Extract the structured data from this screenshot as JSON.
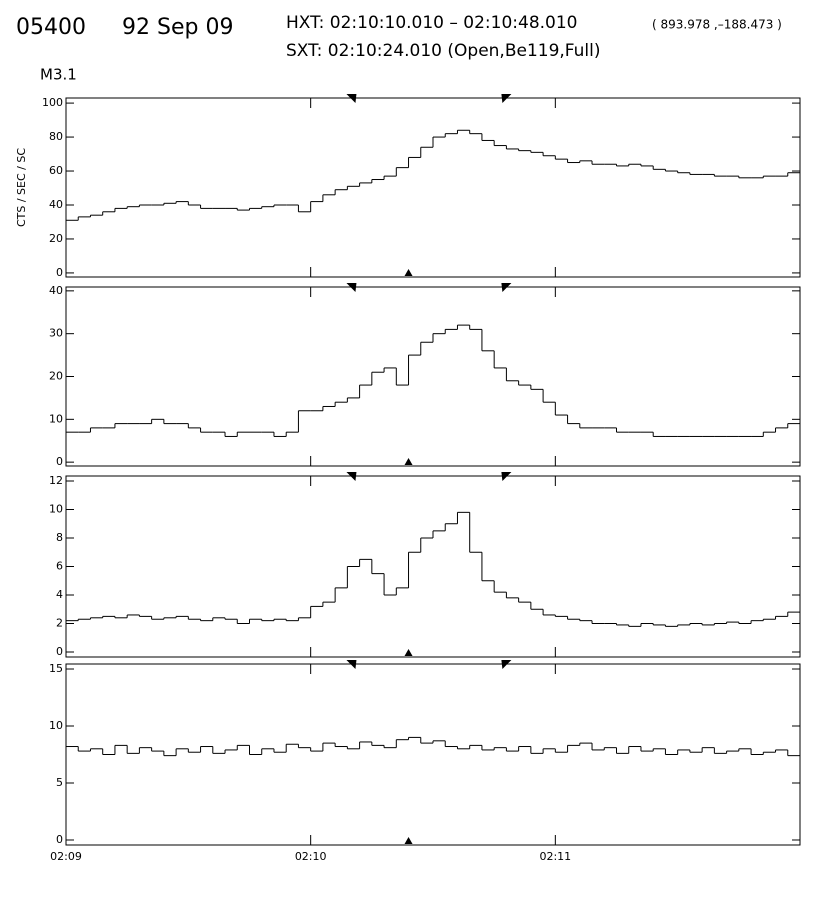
{
  "header": {
    "event": "05400",
    "date": "92 Sep 09",
    "hxt": "HXT: 02:10:10.010 – 02:10:48.010",
    "position": "( 893.978 ,–188.473 )",
    "sxt": "SXT: 02:10:24.010 (Open,Be119,Full)",
    "class": "M3.1"
  },
  "markers": {
    "hxt": [
      70,
      108
    ],
    "sxt": 84
  },
  "chart_data": [
    {
      "type": "step",
      "ylabel": "CTS / SEC / SC",
      "color": "#000000",
      "xlim": [
        0,
        180
      ],
      "ylim": [
        -2.4,
        103
      ],
      "yticks": [
        0,
        20,
        40,
        60,
        80,
        100
      ],
      "x": [
        0,
        3,
        6,
        9,
        12,
        15,
        18,
        21,
        24,
        27,
        30,
        33,
        36,
        39,
        42,
        45,
        48,
        51,
        54,
        57,
        60,
        63,
        66,
        69,
        72,
        75,
        78,
        81,
        84,
        87,
        90,
        93,
        96,
        99,
        102,
        105,
        108,
        111,
        114,
        117,
        120,
        123,
        126,
        129,
        132,
        135,
        138,
        141,
        144,
        147,
        150,
        153,
        156,
        159,
        162,
        165,
        168,
        171,
        174,
        177
      ],
      "values": [
        31,
        33,
        34,
        36,
        38,
        39,
        40,
        40,
        41,
        42,
        40,
        38,
        38,
        38,
        37,
        38,
        39,
        40,
        40,
        36,
        42,
        46,
        49,
        51,
        53,
        55,
        57,
        62,
        68,
        74,
        80,
        82,
        84,
        82,
        78,
        75,
        73,
        72,
        71,
        69,
        67,
        65,
        66,
        64,
        64,
        63,
        64,
        63,
        61,
        60,
        59,
        58,
        58,
        57,
        57,
        56,
        56,
        57,
        57,
        59
      ]
    },
    {
      "type": "step",
      "color": "#000000",
      "xlim": [
        0,
        180
      ],
      "ylim": [
        -0.9,
        40.9
      ],
      "yticks": [
        0,
        10,
        20,
        30,
        40
      ],
      "x": [
        0,
        3,
        6,
        9,
        12,
        15,
        18,
        21,
        24,
        27,
        30,
        33,
        36,
        39,
        42,
        45,
        48,
        51,
        54,
        57,
        60,
        63,
        66,
        69,
        72,
        75,
        78,
        81,
        84,
        87,
        90,
        93,
        96,
        99,
        102,
        105,
        108,
        111,
        114,
        117,
        120,
        123,
        126,
        129,
        132,
        135,
        138,
        141,
        144,
        147,
        150,
        153,
        156,
        159,
        162,
        165,
        168,
        171,
        174,
        177
      ],
      "values": [
        7,
        7,
        8,
        8,
        9,
        9,
        9,
        10,
        9,
        9,
        8,
        7,
        7,
        6,
        7,
        7,
        7,
        6,
        7,
        12,
        12,
        13,
        14,
        15,
        18,
        21,
        22,
        18,
        25,
        28,
        30,
        31,
        32,
        31,
        26,
        22,
        19,
        18,
        17,
        14,
        11,
        9,
        8,
        8,
        8,
        7,
        7,
        7,
        6,
        6,
        6,
        6,
        6,
        6,
        6,
        6,
        6,
        7,
        8,
        9
      ]
    },
    {
      "type": "step",
      "color": "#000000",
      "xlim": [
        0,
        180
      ],
      "ylim": [
        -0.35,
        12.35
      ],
      "yticks": [
        0,
        2,
        4,
        6,
        8,
        10,
        12
      ],
      "x": [
        0,
        3,
        6,
        9,
        12,
        15,
        18,
        21,
        24,
        27,
        30,
        33,
        36,
        39,
        42,
        45,
        48,
        51,
        54,
        57,
        60,
        63,
        66,
        69,
        72,
        75,
        78,
        81,
        84,
        87,
        90,
        93,
        96,
        99,
        102,
        105,
        108,
        111,
        114,
        117,
        120,
        123,
        126,
        129,
        132,
        135,
        138,
        141,
        144,
        147,
        150,
        153,
        156,
        159,
        162,
        165,
        168,
        171,
        174,
        177
      ],
      "values": [
        2.2,
        2.3,
        2.4,
        2.5,
        2.4,
        2.6,
        2.5,
        2.3,
        2.4,
        2.5,
        2.3,
        2.2,
        2.4,
        2.3,
        2.0,
        2.3,
        2.2,
        2.3,
        2.2,
        2.4,
        3.2,
        3.5,
        4.5,
        6.0,
        6.5,
        5.5,
        4.0,
        4.5,
        7.0,
        8.0,
        8.5,
        9.0,
        9.8,
        7.0,
        5.0,
        4.2,
        3.8,
        3.5,
        3.0,
        2.6,
        2.5,
        2.3,
        2.2,
        2.0,
        2.0,
        1.9,
        1.8,
        2.0,
        1.9,
        1.8,
        1.9,
        2.0,
        1.9,
        2.0,
        2.1,
        2.0,
        2.2,
        2.3,
        2.5,
        2.8
      ]
    },
    {
      "type": "step",
      "color": "#000000",
      "xlim": [
        0,
        180
      ],
      "ylim": [
        -0.44,
        15.44
      ],
      "yticks": [
        0,
        5,
        10,
        15
      ],
      "xticks": [
        {
          "value": 0,
          "label": "02:09"
        },
        {
          "value": 60,
          "label": "02:10"
        },
        {
          "value": 120,
          "label": "02:11"
        }
      ],
      "x": [
        0,
        3,
        6,
        9,
        12,
        15,
        18,
        21,
        24,
        27,
        30,
        33,
        36,
        39,
        42,
        45,
        48,
        51,
        54,
        57,
        60,
        63,
        66,
        69,
        72,
        75,
        78,
        81,
        84,
        87,
        90,
        93,
        96,
        99,
        102,
        105,
        108,
        111,
        114,
        117,
        120,
        123,
        126,
        129,
        132,
        135,
        138,
        141,
        144,
        147,
        150,
        153,
        156,
        159,
        162,
        165,
        168,
        171,
        174,
        177
      ],
      "values": [
        8.2,
        7.8,
        8.0,
        7.5,
        8.3,
        7.6,
        8.1,
        7.8,
        7.4,
        8.0,
        7.7,
        8.2,
        7.6,
        7.9,
        8.3,
        7.5,
        8.0,
        7.7,
        8.4,
        8.1,
        7.8,
        8.5,
        8.2,
        8.0,
        8.6,
        8.3,
        8.1,
        8.8,
        9.0,
        8.5,
        8.7,
        8.2,
        8.0,
        8.3,
        7.9,
        8.1,
        7.8,
        8.2,
        7.6,
        8.0,
        7.7,
        8.3,
        8.5,
        7.9,
        8.1,
        7.6,
        8.2,
        7.8,
        8.0,
        7.5,
        7.9,
        7.7,
        8.1,
        7.6,
        7.8,
        8.0,
        7.5,
        7.7,
        7.9,
        7.4
      ]
    }
  ]
}
